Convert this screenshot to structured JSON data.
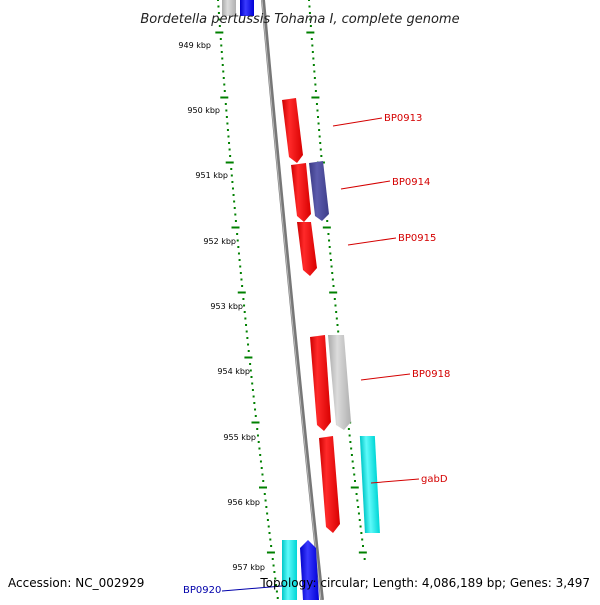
{
  "title": "Bordetella pertussis Tohama I, complete genome",
  "accession": "Accession: NC_002929",
  "topology": "Topology: circular; Length: 4,086,189 bp; Genes: 3,497",
  "ticks": [
    "949 kbp",
    "950 kbp",
    "951 kbp",
    "952 kbp",
    "953 kbp",
    "954 kbp",
    "955 kbp",
    "956 kbp",
    "957 kbp"
  ],
  "gene_labels": [
    {
      "id": "bp0913",
      "text": "BP0913",
      "color": "#d40000"
    },
    {
      "id": "bp0914",
      "text": "BP0914",
      "color": "#d40000"
    },
    {
      "id": "bp0915",
      "text": "BP0915",
      "color": "#d40000"
    },
    {
      "id": "bp0918",
      "text": "BP0918",
      "color": "#d40000"
    },
    {
      "id": "gabd",
      "text": "gabD",
      "color": "#d40000"
    },
    {
      "id": "bp0920",
      "text": "BP0920",
      "color": "#0000aa"
    }
  ],
  "colors": {
    "tick": "#008000",
    "backbone": "#7a7a7a",
    "red": "#ff0000",
    "slate": "#4b4b9a",
    "gray": "#c4c4c4",
    "cyan": "#00e8e8",
    "blue": "#0000ff"
  }
}
